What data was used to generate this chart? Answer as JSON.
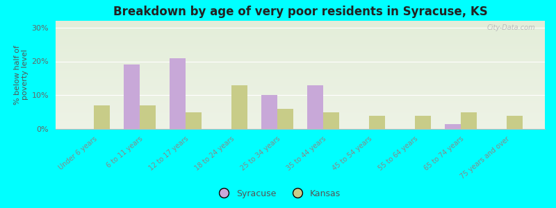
{
  "categories": [
    "Under 6 years",
    "6 to 11 years",
    "12 to 17 years",
    "18 to 24 years",
    "25 to 34 years",
    "35 to 44 years",
    "45 to 54 years",
    "55 to 64 years",
    "65 to 74 years",
    "75 years and over"
  ],
  "syracuse": [
    0,
    19,
    21,
    0,
    10,
    13,
    0,
    0,
    1.5,
    0
  ],
  "kansas": [
    7,
    7,
    5,
    13,
    6,
    5,
    4,
    4,
    5,
    4
  ],
  "syracuse_color": "#c8a8d8",
  "kansas_color": "#c8cc88",
  "title": "Breakdown by age of very poor residents in Syracuse, KS",
  "ylabel": "% below half of\npoverty level",
  "ylim": [
    0,
    32
  ],
  "yticks": [
    0,
    10,
    20,
    30
  ],
  "yticklabels": [
    "0%",
    "10%",
    "20%",
    "30%"
  ],
  "background_color": "#00ffff",
  "bar_width": 0.35,
  "watermark": "City-Data.com",
  "legend_labels": [
    "Syracuse",
    "Kansas"
  ]
}
